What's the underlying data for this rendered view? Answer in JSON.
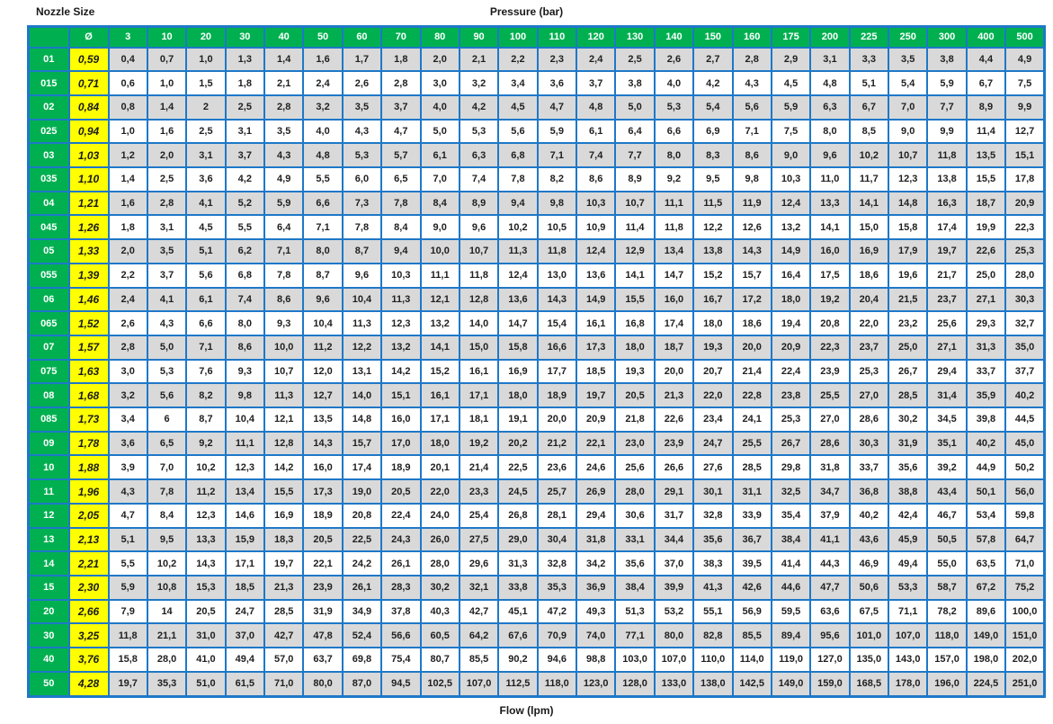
{
  "titles": {
    "top_left": "Nozzle Size",
    "top_center": "Pressure (bar)",
    "bottom_center": "Flow (lpm)"
  },
  "colors": {
    "header_green": "#00B050",
    "diameter_yellow": "#FFFF00",
    "stripe_gray": "#D9D9D9",
    "border_blue": "#1E78C8",
    "header_text": "#FFFFFF",
    "value_text": "#1F1F1F"
  },
  "chart_data": {
    "type": "table",
    "title": "Nozzle Size / Pressure (bar) flow table",
    "xlabel": "Pressure (bar)",
    "ylabel": "Nozzle Size",
    "units_note": "Flow (lpm)",
    "corner_header": "",
    "diameter_header": "Ø",
    "pressure_columns": [
      "3",
      "10",
      "20",
      "30",
      "40",
      "50",
      "60",
      "70",
      "80",
      "90",
      "100",
      "110",
      "120",
      "130",
      "140",
      "150",
      "160",
      "175",
      "200",
      "225",
      "250",
      "300",
      "400",
      "500"
    ],
    "rows": [
      {
        "label": "01",
        "diameter": "0,59",
        "values": [
          "0,4",
          "0,7",
          "1,0",
          "1,3",
          "1,4",
          "1,6",
          "1,7",
          "1,8",
          "2,0",
          "2,1",
          "2,2",
          "2,3",
          "2,4",
          "2,5",
          "2,6",
          "2,7",
          "2,8",
          "2,9",
          "3,1",
          "3,3",
          "3,5",
          "3,8",
          "4,4",
          "4,9"
        ]
      },
      {
        "label": "015",
        "diameter": "0,71",
        "values": [
          "0,6",
          "1,0",
          "1,5",
          "1,8",
          "2,1",
          "2,4",
          "2,6",
          "2,8",
          "3,0",
          "3,2",
          "3,4",
          "3,6",
          "3,7",
          "3,8",
          "4,0",
          "4,2",
          "4,3",
          "4,5",
          "4,8",
          "5,1",
          "5,4",
          "5,9",
          "6,7",
          "7,5"
        ]
      },
      {
        "label": "02",
        "diameter": "0,84",
        "values": [
          "0,8",
          "1,4",
          "2",
          "2,5",
          "2,8",
          "3,2",
          "3,5",
          "3,7",
          "4,0",
          "4,2",
          "4,5",
          "4,7",
          "4,8",
          "5,0",
          "5,3",
          "5,4",
          "5,6",
          "5,9",
          "6,3",
          "6,7",
          "7,0",
          "7,7",
          "8,9",
          "9,9"
        ]
      },
      {
        "label": "025",
        "diameter": "0,94",
        "values": [
          "1,0",
          "1,6",
          "2,5",
          "3,1",
          "3,5",
          "4,0",
          "4,3",
          "4,7",
          "5,0",
          "5,3",
          "5,6",
          "5,9",
          "6,1",
          "6,4",
          "6,6",
          "6,9",
          "7,1",
          "7,5",
          "8,0",
          "8,5",
          "9,0",
          "9,9",
          "11,4",
          "12,7"
        ]
      },
      {
        "label": "03",
        "diameter": "1,03",
        "values": [
          "1,2",
          "2,0",
          "3,1",
          "3,7",
          "4,3",
          "4,8",
          "5,3",
          "5,7",
          "6,1",
          "6,3",
          "6,8",
          "7,1",
          "7,4",
          "7,7",
          "8,0",
          "8,3",
          "8,6",
          "9,0",
          "9,6",
          "10,2",
          "10,7",
          "11,8",
          "13,5",
          "15,1"
        ]
      },
      {
        "label": "035",
        "diameter": "1,10",
        "values": [
          "1,4",
          "2,5",
          "3,6",
          "4,2",
          "4,9",
          "5,5",
          "6,0",
          "6,5",
          "7,0",
          "7,4",
          "7,8",
          "8,2",
          "8,6",
          "8,9",
          "9,2",
          "9,5",
          "9,8",
          "10,3",
          "11,0",
          "11,7",
          "12,3",
          "13,8",
          "15,5",
          "17,8"
        ]
      },
      {
        "label": "04",
        "diameter": "1,21",
        "values": [
          "1,6",
          "2,8",
          "4,1",
          "5,2",
          "5,9",
          "6,6",
          "7,3",
          "7,8",
          "8,4",
          "8,9",
          "9,4",
          "9,8",
          "10,3",
          "10,7",
          "11,1",
          "11,5",
          "11,9",
          "12,4",
          "13,3",
          "14,1",
          "14,8",
          "16,3",
          "18,7",
          "20,9"
        ]
      },
      {
        "label": "045",
        "diameter": "1,26",
        "values": [
          "1,8",
          "3,1",
          "4,5",
          "5,5",
          "6,4",
          "7,1",
          "7,8",
          "8,4",
          "9,0",
          "9,6",
          "10,2",
          "10,5",
          "10,9",
          "11,4",
          "11,8",
          "12,2",
          "12,6",
          "13,2",
          "14,1",
          "15,0",
          "15,8",
          "17,4",
          "19,9",
          "22,3"
        ]
      },
      {
        "label": "05",
        "diameter": "1,33",
        "values": [
          "2,0",
          "3,5",
          "5,1",
          "6,2",
          "7,1",
          "8,0",
          "8,7",
          "9,4",
          "10,0",
          "10,7",
          "11,3",
          "11,8",
          "12,4",
          "12,9",
          "13,4",
          "13,8",
          "14,3",
          "14,9",
          "16,0",
          "16,9",
          "17,9",
          "19,7",
          "22,6",
          "25,3"
        ]
      },
      {
        "label": "055",
        "diameter": "1,39",
        "values": [
          "2,2",
          "3,7",
          "5,6",
          "6,8",
          "7,8",
          "8,7",
          "9,6",
          "10,3",
          "11,1",
          "11,8",
          "12,4",
          "13,0",
          "13,6",
          "14,1",
          "14,7",
          "15,2",
          "15,7",
          "16,4",
          "17,5",
          "18,6",
          "19,6",
          "21,7",
          "25,0",
          "28,0"
        ]
      },
      {
        "label": "06",
        "diameter": "1,46",
        "values": [
          "2,4",
          "4,1",
          "6,1",
          "7,4",
          "8,6",
          "9,6",
          "10,4",
          "11,3",
          "12,1",
          "12,8",
          "13,6",
          "14,3",
          "14,9",
          "15,5",
          "16,0",
          "16,7",
          "17,2",
          "18,0",
          "19,2",
          "20,4",
          "21,5",
          "23,7",
          "27,1",
          "30,3"
        ]
      },
      {
        "label": "065",
        "diameter": "1,52",
        "values": [
          "2,6",
          "4,3",
          "6,6",
          "8,0",
          "9,3",
          "10,4",
          "11,3",
          "12,3",
          "13,2",
          "14,0",
          "14,7",
          "15,4",
          "16,1",
          "16,8",
          "17,4",
          "18,0",
          "18,6",
          "19,4",
          "20,8",
          "22,0",
          "23,2",
          "25,6",
          "29,3",
          "32,7"
        ]
      },
      {
        "label": "07",
        "diameter": "1,57",
        "values": [
          "2,8",
          "5,0",
          "7,1",
          "8,6",
          "10,0",
          "11,2",
          "12,2",
          "13,2",
          "14,1",
          "15,0",
          "15,8",
          "16,6",
          "17,3",
          "18,0",
          "18,7",
          "19,3",
          "20,0",
          "20,9",
          "22,3",
          "23,7",
          "25,0",
          "27,1",
          "31,3",
          "35,0"
        ]
      },
      {
        "label": "075",
        "diameter": "1,63",
        "values": [
          "3,0",
          "5,3",
          "7,6",
          "9,3",
          "10,7",
          "12,0",
          "13,1",
          "14,2",
          "15,2",
          "16,1",
          "16,9",
          "17,7",
          "18,5",
          "19,3",
          "20,0",
          "20,7",
          "21,4",
          "22,4",
          "23,9",
          "25,3",
          "26,7",
          "29,4",
          "33,7",
          "37,7"
        ]
      },
      {
        "label": "08",
        "diameter": "1,68",
        "values": [
          "3,2",
          "5,6",
          "8,2",
          "9,8",
          "11,3",
          "12,7",
          "14,0",
          "15,1",
          "16,1",
          "17,1",
          "18,0",
          "18,9",
          "19,7",
          "20,5",
          "21,3",
          "22,0",
          "22,8",
          "23,8",
          "25,5",
          "27,0",
          "28,5",
          "31,4",
          "35,9",
          "40,2"
        ]
      },
      {
        "label": "085",
        "diameter": "1,73",
        "values": [
          "3,4",
          "6",
          "8,7",
          "10,4",
          "12,1",
          "13,5",
          "14,8",
          "16,0",
          "17,1",
          "18,1",
          "19,1",
          "20,0",
          "20,9",
          "21,8",
          "22,6",
          "23,4",
          "24,1",
          "25,3",
          "27,0",
          "28,6",
          "30,2",
          "34,5",
          "39,8",
          "44,5"
        ]
      },
      {
        "label": "09",
        "diameter": "1,78",
        "values": [
          "3,6",
          "6,5",
          "9,2",
          "11,1",
          "12,8",
          "14,3",
          "15,7",
          "17,0",
          "18,0",
          "19,2",
          "20,2",
          "21,2",
          "22,1",
          "23,0",
          "23,9",
          "24,7",
          "25,5",
          "26,7",
          "28,6",
          "30,3",
          "31,9",
          "35,1",
          "40,2",
          "45,0"
        ]
      },
      {
        "label": "10",
        "diameter": "1,88",
        "values": [
          "3,9",
          "7,0",
          "10,2",
          "12,3",
          "14,2",
          "16,0",
          "17,4",
          "18,9",
          "20,1",
          "21,4",
          "22,5",
          "23,6",
          "24,6",
          "25,6",
          "26,6",
          "27,6",
          "28,5",
          "29,8",
          "31,8",
          "33,7",
          "35,6",
          "39,2",
          "44,9",
          "50,2"
        ]
      },
      {
        "label": "11",
        "diameter": "1,96",
        "values": [
          "4,3",
          "7,8",
          "11,2",
          "13,4",
          "15,5",
          "17,3",
          "19,0",
          "20,5",
          "22,0",
          "23,3",
          "24,5",
          "25,7",
          "26,9",
          "28,0",
          "29,1",
          "30,1",
          "31,1",
          "32,5",
          "34,7",
          "36,8",
          "38,8",
          "43,4",
          "50,1",
          "56,0"
        ]
      },
      {
        "label": "12",
        "diameter": "2,05",
        "values": [
          "4,7",
          "8,4",
          "12,3",
          "14,6",
          "16,9",
          "18,9",
          "20,8",
          "22,4",
          "24,0",
          "25,4",
          "26,8",
          "28,1",
          "29,4",
          "30,6",
          "31,7",
          "32,8",
          "33,9",
          "35,4",
          "37,9",
          "40,2",
          "42,4",
          "46,7",
          "53,4",
          "59,8"
        ]
      },
      {
        "label": "13",
        "diameter": "2,13",
        "values": [
          "5,1",
          "9,5",
          "13,3",
          "15,9",
          "18,3",
          "20,5",
          "22,5",
          "24,3",
          "26,0",
          "27,5",
          "29,0",
          "30,4",
          "31,8",
          "33,1",
          "34,4",
          "35,6",
          "36,7",
          "38,4",
          "41,1",
          "43,6",
          "45,9",
          "50,5",
          "57,8",
          "64,7"
        ]
      },
      {
        "label": "14",
        "diameter": "2,21",
        "values": [
          "5,5",
          "10,2",
          "14,3",
          "17,1",
          "19,7",
          "22,1",
          "24,2",
          "26,1",
          "28,0",
          "29,6",
          "31,3",
          "32,8",
          "34,2",
          "35,6",
          "37,0",
          "38,3",
          "39,5",
          "41,4",
          "44,3",
          "46,9",
          "49,4",
          "55,0",
          "63,5",
          "71,0"
        ]
      },
      {
        "label": "15",
        "diameter": "2,30",
        "values": [
          "5,9",
          "10,8",
          "15,3",
          "18,5",
          "21,3",
          "23,9",
          "26,1",
          "28,3",
          "30,2",
          "32,1",
          "33,8",
          "35,3",
          "36,9",
          "38,4",
          "39,9",
          "41,3",
          "42,6",
          "44,6",
          "47,7",
          "50,6",
          "53,3",
          "58,7",
          "67,2",
          "75,2"
        ]
      },
      {
        "label": "20",
        "diameter": "2,66",
        "values": [
          "7,9",
          "14",
          "20,5",
          "24,7",
          "28,5",
          "31,9",
          "34,9",
          "37,8",
          "40,3",
          "42,7",
          "45,1",
          "47,2",
          "49,3",
          "51,3",
          "53,2",
          "55,1",
          "56,9",
          "59,5",
          "63,6",
          "67,5",
          "71,1",
          "78,2",
          "89,6",
          "100,0"
        ]
      },
      {
        "label": "30",
        "diameter": "3,25",
        "values": [
          "11,8",
          "21,1",
          "31,0",
          "37,0",
          "42,7",
          "47,8",
          "52,4",
          "56,6",
          "60,5",
          "64,2",
          "67,6",
          "70,9",
          "74,0",
          "77,1",
          "80,0",
          "82,8",
          "85,5",
          "89,4",
          "95,6",
          "101,0",
          "107,0",
          "118,0",
          "149,0",
          "151,0"
        ]
      },
      {
        "label": "40",
        "diameter": "3,76",
        "values": [
          "15,8",
          "28,0",
          "41,0",
          "49,4",
          "57,0",
          "63,7",
          "69,8",
          "75,4",
          "80,7",
          "85,5",
          "90,2",
          "94,6",
          "98,8",
          "103,0",
          "107,0",
          "110,0",
          "114,0",
          "119,0",
          "127,0",
          "135,0",
          "143,0",
          "157,0",
          "198,0",
          "202,0"
        ]
      },
      {
        "label": "50",
        "diameter": "4,28",
        "values": [
          "19,7",
          "35,3",
          "51,0",
          "61,5",
          "71,0",
          "80,0",
          "87,0",
          "94,5",
          "102,5",
          "107,0",
          "112,5",
          "118,0",
          "123,0",
          "128,0",
          "133,0",
          "138,0",
          "142,5",
          "149,0",
          "159,0",
          "168,5",
          "178,0",
          "196,0",
          "224,5",
          "251,0"
        ]
      }
    ]
  }
}
